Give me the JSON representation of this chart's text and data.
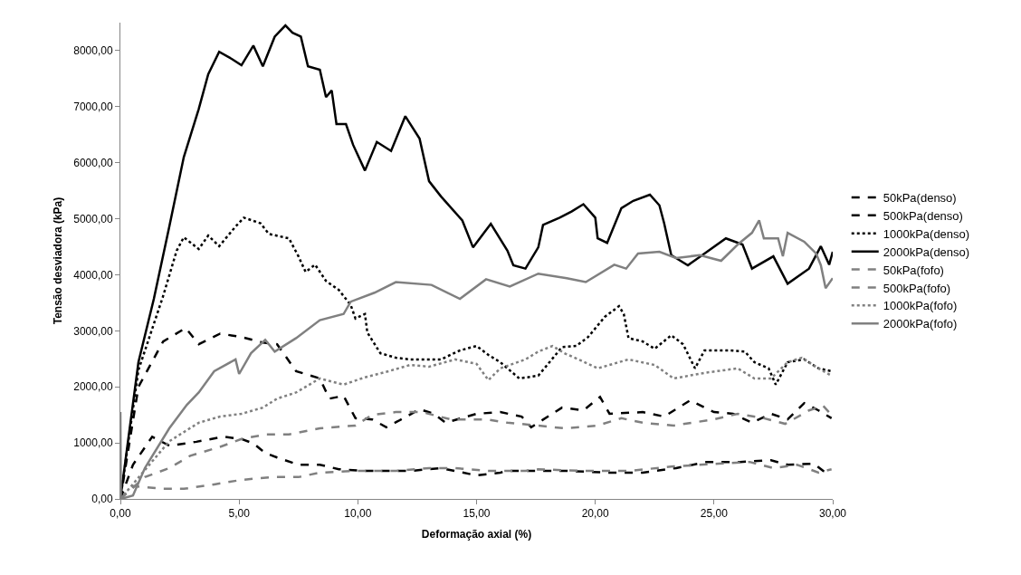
{
  "chart_data": {
    "type": "line",
    "xlabel": "Deformação axial (%)",
    "ylabel": "Tensão desviadora (kPa)",
    "xlim": [
      0,
      30
    ],
    "xticks": [
      {
        "value": 0,
        "label": "0,00"
      },
      {
        "value": 5,
        "label": "5,00"
      },
      {
        "value": 10,
        "label": "10,00"
      },
      {
        "value": 15,
        "label": "15,00"
      },
      {
        "value": 20,
        "label": "20,00"
      },
      {
        "value": 25,
        "label": "25,00"
      },
      {
        "value": 30,
        "label": "30,00"
      }
    ],
    "ylim": [
      0,
      8500
    ],
    "yticks": [
      {
        "value": 0,
        "label": "0,00"
      },
      {
        "value": 1000,
        "label": "1000,00"
      },
      {
        "value": 2000,
        "label": "2000,00"
      },
      {
        "value": 3000,
        "label": "3000,00"
      },
      {
        "value": 4000,
        "label": "4000,00"
      },
      {
        "value": 5000,
        "label": "5000,00"
      },
      {
        "value": 6000,
        "label": "6000,00"
      },
      {
        "value": 7000,
        "label": "7000,00"
      },
      {
        "value": 8000,
        "label": "8000,00"
      }
    ],
    "grid": false,
    "legend": "right",
    "marker": "none",
    "series": [
      {
        "name": "50kPa(denso)",
        "color": "#000000",
        "line_style": "dashed",
        "x": [
          0,
          0.53,
          1.34,
          2.06,
          3.2,
          4.35,
          5.1,
          5.6,
          6.1,
          6.6,
          7.5,
          8.4,
          9.2,
          10.3,
          12.2,
          13.5,
          15.0,
          16.0,
          16.3,
          17.6,
          18.8,
          20.5,
          22.0,
          23.4,
          24.7,
          26.1,
          27.4,
          28.1,
          29.2,
          29.6,
          29.95
        ],
        "values": [
          0,
          610,
          1110,
          950,
          1020,
          1110,
          1070,
          990,
          820,
          740,
          610,
          610,
          530,
          500,
          500,
          550,
          420,
          470,
          500,
          500,
          500,
          470,
          470,
          550,
          660,
          660,
          690,
          610,
          630,
          500,
          470
        ]
      },
      {
        "name": "500kPa(denso)",
        "color": "#000000",
        "line_style": "dashed",
        "x": [
          0,
          0.76,
          1.8,
          2.75,
          3.3,
          4.2,
          5.1,
          6.0,
          6.6,
          7.4,
          8.4,
          8.8,
          9.4,
          9.9,
          10.6,
          11.2,
          11.7,
          12.6,
          13.2,
          13.7,
          15.0,
          16.0,
          16.9,
          17.3,
          18.6,
          19.5,
          20.2,
          20.6,
          22.0,
          22.9,
          24.0,
          25.0,
          25.8,
          26.6,
          27.4,
          28.1,
          28.8,
          29.4,
          29.95
        ],
        "values": [
          0,
          2000,
          2810,
          3050,
          2760,
          2950,
          2890,
          2790,
          2760,
          2280,
          2150,
          1790,
          1840,
          1440,
          1420,
          1280,
          1390,
          1600,
          1520,
          1360,
          1520,
          1550,
          1470,
          1280,
          1630,
          1580,
          1820,
          1520,
          1550,
          1470,
          1760,
          1550,
          1520,
          1360,
          1520,
          1420,
          1710,
          1580,
          1440
        ]
      },
      {
        "name": "1000kPa(denso)",
        "color": "#000000",
        "line_style": "dotted",
        "x": [
          0,
          0.76,
          1.8,
          2.37,
          2.67,
          3.3,
          3.7,
          4.16,
          4.85,
          5.2,
          5.9,
          6.25,
          7.1,
          7.5,
          7.8,
          8.2,
          8.66,
          9.2,
          9.7,
          9.9,
          10.3,
          10.4,
          10.95,
          11.6,
          12.2,
          13.5,
          14.3,
          15.0,
          15.5,
          16.0,
          16.8,
          17.6,
          18.6,
          19.2,
          19.7,
          20.4,
          21.0,
          21.2,
          21.4,
          22.0,
          22.5,
          23.2,
          23.7,
          24.2,
          24.6,
          25.7,
          26.3,
          26.7,
          27.3,
          27.6,
          28.1,
          28.8,
          29.4,
          29.95
        ],
        "values": [
          0,
          2300,
          3620,
          4430,
          4670,
          4460,
          4700,
          4510,
          4860,
          5020,
          4920,
          4730,
          4650,
          4330,
          4050,
          4180,
          3890,
          3730,
          3460,
          3220,
          3300,
          2970,
          2600,
          2520,
          2490,
          2490,
          2650,
          2730,
          2570,
          2440,
          2150,
          2200,
          2710,
          2730,
          2890,
          3250,
          3440,
          3300,
          2870,
          2810,
          2680,
          2920,
          2760,
          2330,
          2650,
          2650,
          2630,
          2440,
          2330,
          2040,
          2440,
          2490,
          2330,
          2280
        ]
      },
      {
        "name": "2000kPa(denso)",
        "color": "#000000",
        "line_style": "solid",
        "x": [
          0,
          0.76,
          1.41,
          2.06,
          2.67,
          3.3,
          3.7,
          4.16,
          4.7,
          5.1,
          5.6,
          6.0,
          6.5,
          6.95,
          7.25,
          7.6,
          7.9,
          8.4,
          8.66,
          8.9,
          9.1,
          9.5,
          9.8,
          10.3,
          10.8,
          11.4,
          12.0,
          12.6,
          13.0,
          13.5,
          14.4,
          14.85,
          15.6,
          16.3,
          16.55,
          17.06,
          17.6,
          17.8,
          18.5,
          19.0,
          19.5,
          20.0,
          20.1,
          20.5,
          21.1,
          21.6,
          22.3,
          22.7,
          22.9,
          23.2,
          23.9,
          24.6,
          25.5,
          26.2,
          26.6,
          27.5,
          28.1,
          29.0,
          29.5,
          29.85,
          30.0
        ],
        "values": [
          0,
          2440,
          3570,
          4860,
          6100,
          6960,
          7580,
          7980,
          7850,
          7740,
          8090,
          7720,
          8250,
          8450,
          8320,
          8250,
          7720,
          7660,
          7170,
          7290,
          6690,
          6690,
          6320,
          5860,
          6370,
          6210,
          6830,
          6430,
          5670,
          5400,
          4970,
          4490,
          4910,
          4430,
          4170,
          4110,
          4490,
          4890,
          5020,
          5130,
          5260,
          5020,
          4650,
          4570,
          5190,
          5320,
          5430,
          5240,
          4920,
          4350,
          4170,
          4380,
          4650,
          4540,
          4110,
          4330,
          3840,
          4110,
          4510,
          4180,
          4410
        ]
      },
      {
        "name": "50kPa(fofo)",
        "color": "#808080",
        "line_style": "dashed",
        "x": [
          0,
          0.53,
          1.8,
          2.67,
          3.95,
          5.1,
          6.4,
          7.5,
          8.4,
          9.9,
          11.6,
          13.0,
          14.1,
          15.5,
          17.06,
          17.6,
          19.5,
          21.4,
          23.3,
          25.2,
          26.5,
          27.5,
          28.5,
          29.4,
          29.95
        ],
        "values": [
          0,
          230,
          180,
          180,
          260,
          340,
          390,
          390,
          470,
          500,
          500,
          550,
          550,
          500,
          500,
          530,
          500,
          500,
          580,
          630,
          660,
          550,
          610,
          470,
          530
        ]
      },
      {
        "name": "500kPa(fofo)",
        "color": "#808080",
        "line_style": "dashed",
        "x": [
          0,
          1.03,
          2.06,
          2.94,
          4.2,
          5.1,
          6.1,
          7.1,
          8.4,
          9.9,
          10.6,
          11.6,
          12.7,
          13.9,
          15.4,
          16.3,
          17.6,
          18.7,
          20.1,
          21.1,
          22.0,
          23.3,
          25.0,
          26.0,
          27.1,
          28.0,
          29.0,
          29.6,
          29.95
        ],
        "values": [
          0,
          390,
          550,
          770,
          930,
          1070,
          1150,
          1150,
          1260,
          1310,
          1500,
          1550,
          1550,
          1420,
          1420,
          1360,
          1310,
          1260,
          1310,
          1440,
          1360,
          1310,
          1420,
          1520,
          1440,
          1340,
          1580,
          1660,
          1500
        ]
      },
      {
        "name": "1000kPa(fofo)",
        "color": "#808080",
        "line_style": "dotted",
        "x": [
          0,
          2.06,
          3.3,
          4.2,
          5.1,
          6.0,
          6.6,
          7.4,
          8.4,
          9.4,
          10.3,
          11.3,
          12.2,
          13.0,
          14.1,
          15.0,
          15.5,
          16.0,
          17.06,
          17.6,
          18.2,
          18.7,
          19.4,
          20.1,
          21.4,
          22.5,
          23.3,
          24.6,
          26.0,
          26.7,
          27.4,
          28.1,
          28.7,
          29.4,
          29.95
        ],
        "values": [
          0,
          1030,
          1360,
          1470,
          1520,
          1630,
          1790,
          1900,
          2150,
          2040,
          2170,
          2280,
          2390,
          2360,
          2490,
          2410,
          2120,
          2330,
          2490,
          2630,
          2730,
          2600,
          2470,
          2330,
          2490,
          2390,
          2150,
          2250,
          2330,
          2150,
          2150,
          2440,
          2520,
          2330,
          2200
        ]
      },
      {
        "name": "2000kPa(fofo)",
        "color": "#808080",
        "line_style": "solid",
        "x": [
          0,
          0.02,
          0.53,
          1.03,
          2.06,
          2.8,
          3.3,
          3.95,
          4.85,
          5.0,
          5.5,
          6.1,
          6.5,
          7.4,
          8.4,
          9.4,
          9.7,
          10.7,
          11.6,
          13.1,
          14.3,
          15.4,
          16.4,
          17.6,
          18.8,
          19.6,
          20.8,
          21.3,
          21.8,
          22.7,
          23.4,
          24.4,
          25.3,
          26.0,
          26.6,
          26.9,
          27.1,
          27.7,
          27.9,
          28.1,
          28.8,
          29.3,
          29.5,
          29.7,
          30.0
        ],
        "values": [
          1550,
          0,
          60,
          550,
          1260,
          1680,
          1900,
          2280,
          2490,
          2230,
          2600,
          2840,
          2630,
          2870,
          3190,
          3300,
          3520,
          3680,
          3870,
          3820,
          3570,
          3920,
          3790,
          4020,
          3940,
          3870,
          4180,
          4110,
          4380,
          4410,
          4300,
          4350,
          4250,
          4540,
          4750,
          4970,
          4650,
          4650,
          4330,
          4750,
          4590,
          4380,
          4170,
          3760,
          3940
        ]
      }
    ]
  }
}
